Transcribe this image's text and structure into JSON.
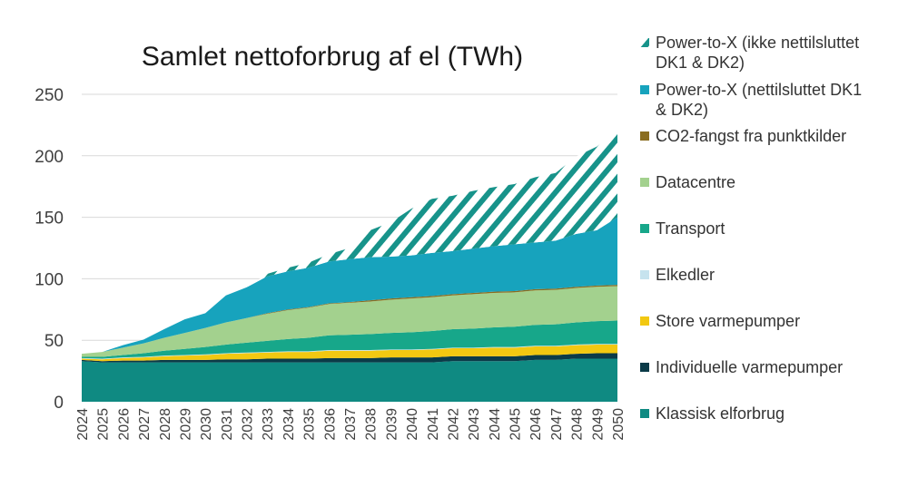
{
  "chart_data": {
    "type": "area",
    "title": "Samlet nettoforbrug af el (TWh)",
    "xlabel": "",
    "ylabel": "",
    "ylim": [
      0,
      250
    ],
    "yticks": [
      0,
      50,
      100,
      150,
      200,
      250
    ],
    "grid": true,
    "legend_position": "right",
    "categories": [
      "2024",
      "2025",
      "2026",
      "2027",
      "2028",
      "2029",
      "2030",
      "2031",
      "2032",
      "2033",
      "2034",
      "2035",
      "2036",
      "2037",
      "2038",
      "2039",
      "2040",
      "2041",
      "2042",
      "2043",
      "2044",
      "2045",
      "2046",
      "2047",
      "2048",
      "2049",
      "2050"
    ],
    "series": [
      {
        "name": "Klassisk elforbrug",
        "color": "#0f8a82",
        "pattern": "solid",
        "values": [
          33,
          32,
          32,
          32,
          32,
          32,
          32,
          32,
          32,
          32,
          32,
          32,
          32,
          32,
          32,
          32,
          32,
          32,
          33,
          33,
          33,
          33,
          34,
          34,
          35,
          35,
          35
        ]
      },
      {
        "name": "Individuelle varmepumper",
        "color": "#0b3b48",
        "pattern": "solid",
        "values": [
          1,
          1,
          1.5,
          1.5,
          2,
          2,
          2,
          2.5,
          2.5,
          3,
          3,
          3,
          3.5,
          3.5,
          3.5,
          4,
          4,
          4,
          4,
          4,
          4,
          4,
          4,
          4,
          4,
          4.5,
          4.5
        ]
      },
      {
        "name": "Store varmepumper",
        "color": "#f2c811",
        "pattern": "solid",
        "values": [
          1,
          1.5,
          2,
          2.5,
          3,
          3.5,
          4,
          4.5,
          5,
          5,
          5.5,
          5.5,
          6,
          6,
          6,
          6,
          6,
          6.5,
          6.5,
          6.5,
          7,
          7,
          7,
          7,
          7,
          7,
          7
        ]
      },
      {
        "name": "Elkedler",
        "color": "#c6e3ee",
        "pattern": "solid",
        "values": [
          0.5,
          0.5,
          0.5,
          0.5,
          0.5,
          0.5,
          0.5,
          0.5,
          0.5,
          0.5,
          0.5,
          0.5,
          0.5,
          0.5,
          0.5,
          0.5,
          0.5,
          0.5,
          0.5,
          0.5,
          0.5,
          0.5,
          0.5,
          0.5,
          0.5,
          0.5,
          0.5
        ]
      },
      {
        "name": "Transport",
        "color": "#17a78a",
        "pattern": "solid",
        "values": [
          1,
          1.5,
          2,
          3,
          4,
          5,
          6,
          7,
          8,
          9,
          10,
          11,
          12,
          12.5,
          13,
          13.5,
          14,
          14.5,
          15,
          15.5,
          16,
          16.5,
          17,
          17.5,
          18,
          18.5,
          19
        ]
      },
      {
        "name": "Datacentre",
        "color": "#a3d18e",
        "pattern": "solid",
        "values": [
          2.5,
          4,
          6,
          8,
          10.5,
          13,
          15.5,
          18,
          20,
          22,
          23.5,
          24.5,
          25.5,
          26,
          26.5,
          27,
          27.5,
          27.5,
          27.5,
          28,
          28,
          28,
          28,
          28,
          28,
          28,
          28
        ]
      },
      {
        "name": "CO2-fangst fra punktkilder",
        "color": "#8a6d1f",
        "pattern": "solid",
        "values": [
          0,
          0,
          0,
          0,
          0,
          0,
          0,
          0,
          0,
          0.5,
          0.5,
          0.5,
          0.5,
          0.5,
          1,
          1,
          1,
          1,
          1,
          1,
          1,
          1,
          1,
          1,
          1,
          1,
          1
        ]
      },
      {
        "name": "Power-to-X (nettilsluttet DK1 & DK2)",
        "color": "#17a3bd",
        "pattern": "solid",
        "values": [
          0,
          0,
          2,
          3,
          7,
          11,
          12,
          22,
          25,
          30,
          31,
          32,
          34,
          35,
          35,
          34,
          34,
          35,
          35,
          36,
          37,
          38,
          38,
          39,
          43,
          45,
          55
        ]
      },
      {
        "name": "Power-to-X (ikke nettilsluttet DK1 & DK2)",
        "color": "#17938a",
        "pattern": "hatched",
        "values": [
          0,
          0,
          0,
          0,
          0,
          0,
          0,
          0,
          0,
          2,
          3,
          4,
          6,
          9,
          22,
          28,
          38,
          44,
          45,
          47,
          48,
          49,
          53,
          55,
          63,
          68,
          71
        ]
      }
    ]
  }
}
